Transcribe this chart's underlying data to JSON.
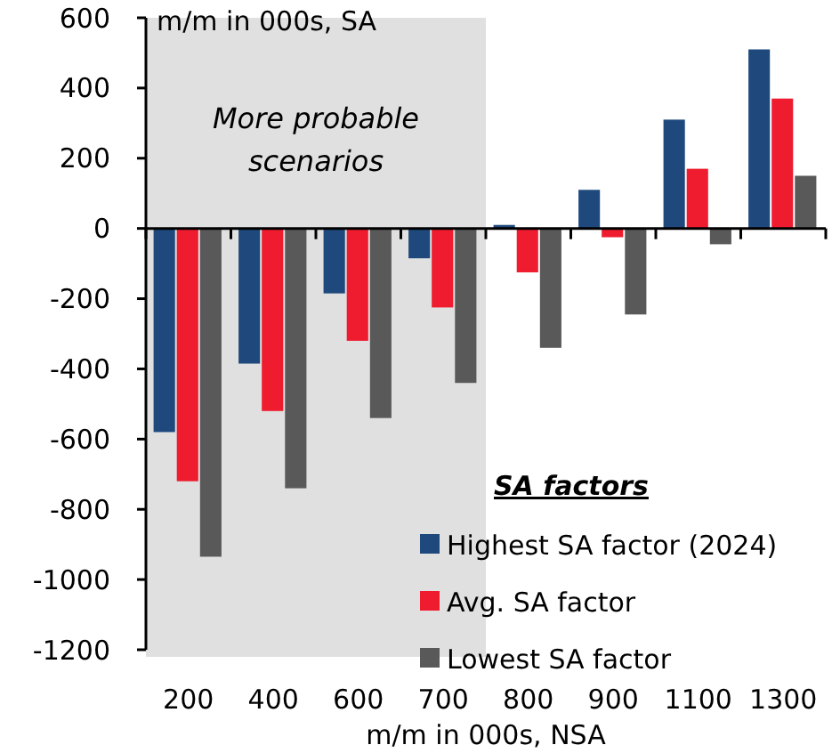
{
  "chart_data": {
    "type": "bar",
    "ylabel": "m/m in 000s, SA",
    "xlabel": "m/m in 000s, NSA",
    "legend_title": "SA factors",
    "legend": "bottom right",
    "categories": [
      "200",
      "400",
      "600",
      "700",
      "800",
      "900",
      "1100",
      "1300"
    ],
    "series": [
      {
        "name": "Highest SA factor (2024)",
        "color": "#1f497d",
        "values": [
          -580,
          -385,
          -185,
          -85,
          10,
          110,
          310,
          510
        ]
      },
      {
        "name": "Avg. SA factor",
        "color": "#ee1c2e",
        "values": [
          -720,
          -520,
          -320,
          -225,
          -125,
          -25,
          170,
          370
        ]
      },
      {
        "name": "Lowest SA factor",
        "color": "#595959",
        "values": [
          -935,
          -740,
          -540,
          -440,
          -340,
          -245,
          -45,
          150
        ]
      }
    ],
    "ylim": [
      -1200,
      600
    ],
    "yticks": [
      -1200,
      -1000,
      -800,
      -600,
      -400,
      -200,
      0,
      200,
      400,
      600
    ],
    "bands": [
      {
        "axis": "x",
        "from": "200",
        "to": "700",
        "label": "More probable scenarios",
        "color": "#e0e0e0"
      }
    ]
  }
}
